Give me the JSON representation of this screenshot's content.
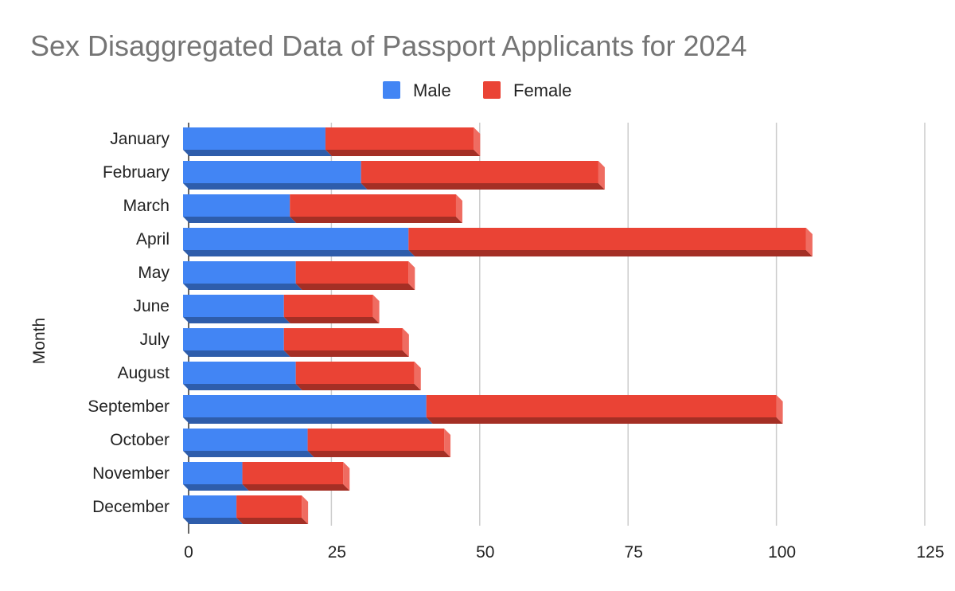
{
  "chart_data": {
    "type": "bar",
    "orientation": "horizontal",
    "stacked": true,
    "style": "3d",
    "title": "Sex Disaggregated Data of Passport Applicants for 2024",
    "xlabel": "",
    "ylabel": "Month",
    "xlim": [
      0,
      125
    ],
    "xticks": [
      0,
      25,
      50,
      75,
      100,
      125
    ],
    "grid": true,
    "legend_position": "top",
    "categories": [
      "January",
      "February",
      "March",
      "April",
      "May",
      "June",
      "July",
      "August",
      "September",
      "October",
      "November",
      "December"
    ],
    "series": [
      {
        "name": "Male",
        "color": "#4285f4",
        "values": [
          24,
          30,
          18,
          38,
          19,
          17,
          17,
          19,
          41,
          21,
          10,
          9
        ]
      },
      {
        "name": "Female",
        "color": "#ea4335",
        "values": [
          25,
          40,
          28,
          67,
          19,
          15,
          20,
          20,
          59,
          23,
          17,
          11
        ]
      }
    ]
  }
}
